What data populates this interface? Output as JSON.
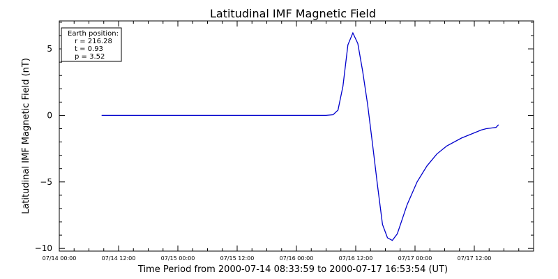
{
  "chart_data": {
    "type": "line",
    "title": "Latitudinal IMF Magnetic Field",
    "xlabel": "Time Period from 2000-07-14 08:33:59 to 2000-07-17 16:53:54 (UT)",
    "ylabel": "Latitudinal IMF Magnetic Field (nT)",
    "xlim": [
      "2000-07-14 00:00",
      "2000-07-18 00:00"
    ],
    "ylim": [
      -10.2,
      7.1
    ],
    "x_ticks": [
      "07/14 00:00",
      "07/14 12:00",
      "07/15 00:00",
      "07/15 12:00",
      "07/16 00:00",
      "07/16 12:00",
      "07/17 00:00",
      "07/17 12:00"
    ],
    "x_tick_values": [
      "2000-07-14 00:00",
      "2000-07-14 12:00",
      "2000-07-15 00:00",
      "2000-07-15 12:00",
      "2000-07-16 00:00",
      "2000-07-16 12:00",
      "2000-07-17 00:00",
      "2000-07-17 12:00"
    ],
    "y_ticks": [
      5,
      0,
      -5,
      -10
    ],
    "y_tick_labels": [
      "5",
      "0",
      "−5",
      "−10"
    ],
    "grid": false,
    "color": "#0000cc",
    "annotation": {
      "lines": [
        "Earth position:",
        "r = 216.28",
        "t = 0.93",
        "p = 3.52"
      ]
    },
    "series": [
      {
        "x": [
          "2000-07-14 08:34",
          "2000-07-14 12:00",
          "2000-07-15 00:00",
          "2000-07-15 12:00",
          "2000-07-16 00:00",
          "2000-07-16 06:00",
          "2000-07-16 07:25",
          "2000-07-16 08:25",
          "2000-07-16 09:25",
          "2000-07-16 10:25",
          "2000-07-16 11:25",
          "2000-07-16 12:25",
          "2000-07-16 13:25",
          "2000-07-16 14:25",
          "2000-07-16 15:25",
          "2000-07-16 16:25",
          "2000-07-16 17:25",
          "2000-07-16 18:25",
          "2000-07-16 19:25",
          "2000-07-16 20:25",
          "2000-07-16 21:25",
          "2000-07-16 22:25",
          "2000-07-17 00:25",
          "2000-07-17 02:25",
          "2000-07-17 04:25",
          "2000-07-17 06:25",
          "2000-07-17 09:25",
          "2000-07-17 11:25",
          "2000-07-17 13:25",
          "2000-07-17 14:25",
          "2000-07-17 16:25",
          "2000-07-17 16:54"
        ],
        "y": [
          0,
          0,
          0,
          0,
          0,
          0,
          0.05,
          0.4,
          2.2,
          5.3,
          6.2,
          5.4,
          3.3,
          0.8,
          -2.2,
          -5.3,
          -8.2,
          -9.2,
          -9.4,
          -8.9,
          -7.8,
          -6.7,
          -5.0,
          -3.8,
          -2.9,
          -2.3,
          -1.7,
          -1.4,
          -1.1,
          -1.0,
          -0.9,
          -0.7
        ]
      }
    ]
  }
}
